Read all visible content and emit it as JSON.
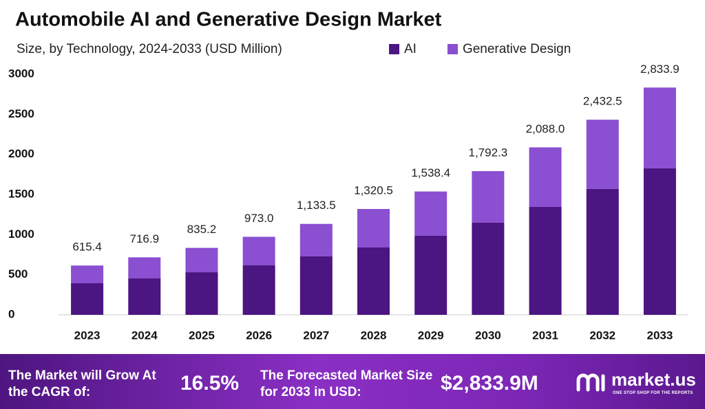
{
  "chart_data": {
    "type": "stacked_bar",
    "title": "Automobile AI and Generative Design Market",
    "subtitle": "Size, by Technology, 2024-2033 (USD Million)",
    "categories": [
      "2023",
      "2024",
      "2025",
      "2026",
      "2027",
      "2028",
      "2029",
      "2030",
      "2031",
      "2032",
      "2033"
    ],
    "series": [
      {
        "name": "AI",
        "color": "#4b1582",
        "values": [
          394,
          454,
          531,
          617,
          729,
          840,
          986,
          1149,
          1346,
          1569,
          1826
        ]
      },
      {
        "name": "Generative Design",
        "color": "#8b4fd1",
        "values": [
          221,
          263,
          304,
          356,
          405,
          480,
          552,
          643,
          742,
          864,
          1008
        ]
      }
    ],
    "totals": [
      615.4,
      716.9,
      835.2,
      973.0,
      1133.5,
      1320.5,
      1538.4,
      1792.3,
      2088.0,
      2432.5,
      2833.9
    ],
    "total_labels": [
      "615.4",
      "716.9",
      "835.2",
      "973.0",
      "1,133.5",
      "1,320.5",
      "1,538.4",
      "1,792.3",
      "2,088.0",
      "2,432.5",
      "2,833.9"
    ],
    "ylim": [
      0,
      3000
    ],
    "yticks": [
      0,
      500,
      1000,
      1500,
      2000,
      2500,
      3000
    ],
    "grid": false
  },
  "footer": {
    "cagr_text": "The Market will Grow At the CAGR of:",
    "cagr_value": "16.5%",
    "forecast_text": "The Forecasted Market Size for 2033 in USD:",
    "forecast_value": "$2,833.9M",
    "brand": "market.us",
    "tagline": "ONE STOP SHOP FOR THE REPORTS"
  }
}
